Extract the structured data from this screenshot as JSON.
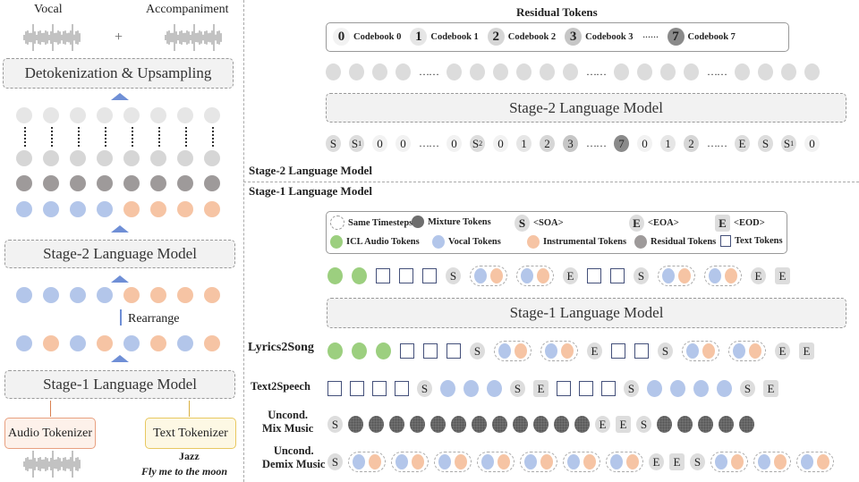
{
  "colors": {
    "vocal": "#b3c6ea",
    "instrumental": "#f6c4a4",
    "icl": "#9ccf7f",
    "residual": "#9e9a9a",
    "mixture": "#6e6e6e",
    "codebook0": "#f2f2f2",
    "codebook1": "#e6e6e6",
    "codebook2": "#d6d6d6",
    "codebook3": "#c6c6c6",
    "codebook7": "#8a8a8a",
    "accent": "#6f8fd6"
  },
  "left": {
    "vocal_label": "Vocal",
    "accompaniment_label": "Accompaniment",
    "plus": "+",
    "detok_label": "Detokenization & Upsampling",
    "stage2_label": "Stage-2 Language Model",
    "rearrange_label": "Rearrange",
    "stage1_label": "Stage-1 Language Model",
    "audio_tokenizer": "Audio Tokenizer",
    "text_tokenizer": "Text Tokenizer",
    "genre": "Jazz",
    "lyrics": "Fly me to the moon",
    "rows": {
      "after_rearrange": [
        "V",
        "V",
        "V",
        "V",
        "I",
        "I",
        "I",
        "I"
      ],
      "interleaved": [
        "V",
        "I",
        "V",
        "I",
        "V",
        "I",
        "V",
        "I"
      ]
    }
  },
  "stage2": {
    "residual_title": "Residual Tokens",
    "codebooks": [
      {
        "n": "0",
        "label": "Codebook 0"
      },
      {
        "n": "1",
        "label": "Codebook 1"
      },
      {
        "n": "2",
        "label": "Codebook 2"
      },
      {
        "n": "3",
        "label": "Codebook 3"
      },
      {
        "n": "7",
        "label": "Codebook 7"
      }
    ],
    "legend_dots": "······",
    "model_label": "Stage-2 Language Model",
    "section_label": "Stage-2 Language Model",
    "input_tokens": [
      "S",
      "S1",
      "0",
      "0",
      "…",
      "0",
      "S2",
      "0",
      "1",
      "2",
      "3",
      "…",
      "7",
      "0",
      "1",
      "2",
      "…",
      "E",
      "S",
      "S1",
      "0"
    ]
  },
  "stage1": {
    "section_label": "Stage-1 Language Model",
    "legend": {
      "same_timesteps": "Same Timesteps",
      "mixture": "Mixture Tokens",
      "soa_glyph": "S",
      "soa": "<SOA>",
      "eoa_glyph": "E",
      "eoa": "<EOA>",
      "eod_glyph": "E",
      "eod": "<EOD>",
      "icl": "ICL Audio Tokens",
      "vocal": "Vocal Tokens",
      "instrumental": "Instrumental Tokens",
      "residual": "Residual Tokens",
      "text": "Text Tokens"
    },
    "model_label": "Stage-1 Language Model",
    "output_tokens": [
      "G",
      "G",
      "T",
      "T",
      "T",
      "S",
      "P",
      "P",
      "E",
      "T",
      "T",
      "S",
      "P",
      "P",
      "E",
      "D"
    ],
    "tasks": [
      {
        "label": "Lyrics2Song",
        "tokens": [
          "G",
          "G",
          "G",
          "T",
          "T",
          "T",
          "S",
          "P",
          "P",
          "E",
          "T",
          "T",
          "S",
          "P",
          "P",
          "E",
          "D"
        ]
      },
      {
        "label": "Text2Speech",
        "tokens": [
          "T",
          "T",
          "T",
          "T",
          "S",
          "V",
          "V",
          "V",
          "S",
          "D",
          "T",
          "T",
          "T",
          "S",
          "V",
          "V",
          "V",
          "V",
          "S",
          "D"
        ]
      },
      {
        "label": "Uncond. Mix Music",
        "tokens": [
          "S",
          "M",
          "M",
          "M",
          "M",
          "M",
          "M",
          "M",
          "M",
          "M",
          "M",
          "M",
          "M",
          "E",
          "D",
          "S",
          "M",
          "M",
          "M",
          "M",
          "M"
        ]
      },
      {
        "label": "Uncond. Demix Music",
        "tokens": [
          "S",
          "P",
          "P",
          "P",
          "P",
          "P",
          "P",
          "P",
          "E",
          "D",
          "S",
          "P",
          "P",
          "P"
        ]
      }
    ]
  }
}
